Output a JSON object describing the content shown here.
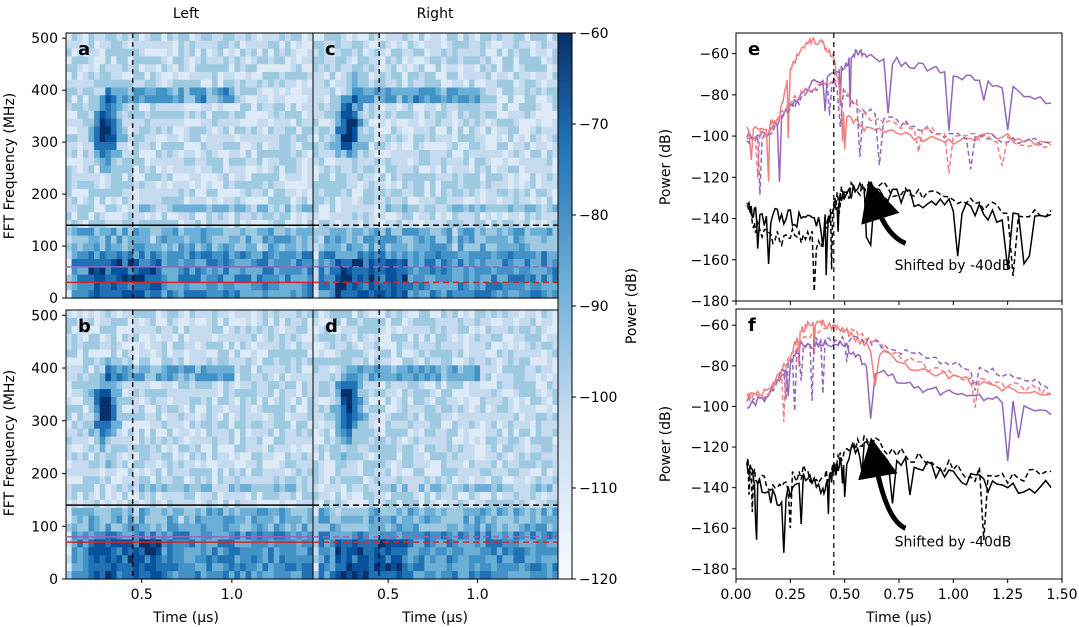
{
  "chart_data": {
    "type": "heatmap",
    "spectrograms": {
      "column_titles": [
        "Left",
        "Right"
      ],
      "colorbar": {
        "label": "Power (dB)",
        "ticks": [
          -60,
          -70,
          -80,
          -90,
          -100,
          -110,
          -120
        ],
        "range": [
          -120,
          -60
        ]
      },
      "ylabel": "FFT Frequency (MHz)",
      "yticks": [
        0,
        100,
        200,
        300,
        400,
        500
      ],
      "ylim": [
        0,
        510
      ],
      "xlabel": "Time (μs)",
      "xticks": [
        0.5,
        1.0
      ],
      "xlim": [
        0.08,
        1.45
      ],
      "xtick_labels": [
        "0.5",
        "1.0"
      ],
      "vline_time": 0.45,
      "panels": [
        {
          "tag": "a",
          "side": "Left",
          "row": "top",
          "hline_black": 140,
          "band_purple": 60,
          "band_red": 30,
          "line_style": "solid",
          "blob_time": 0.3,
          "blob_freq": 320
        },
        {
          "tag": "c",
          "side": "Right",
          "row": "top",
          "hline_black": 140,
          "band_purple": 60,
          "band_red": 30,
          "line_style": "dashed",
          "blob_time": 0.28,
          "blob_freq": 330
        },
        {
          "tag": "b",
          "side": "Left",
          "row": "bottom",
          "hline_black": 140,
          "band_purple": 80,
          "band_red": 70,
          "line_style": "solid",
          "blob_time": 0.3,
          "blob_freq": 320
        },
        {
          "tag": "d",
          "side": "Right",
          "row": "bottom",
          "hline_black": 140,
          "band_purple": 80,
          "band_red": 70,
          "line_style": "dashed",
          "blob_time": 0.28,
          "blob_freq": 330
        }
      ]
    },
    "power_plots": [
      {
        "tag": "e",
        "type": "line",
        "ylabel": "Power (dB)",
        "ylim": [
          -180,
          -50
        ],
        "yticks": [
          -60,
          -80,
          -100,
          -120,
          -140,
          -160,
          -180
        ],
        "xlim": [
          0,
          1.5
        ],
        "vline_time": 0.45,
        "annotation": "Shifted by -40dB",
        "series": [
          {
            "name": "purple solid",
            "color": "#9467bd",
            "style": "solid",
            "x": [
              0.05,
              0.15,
              0.25,
              0.35,
              0.45,
              0.5,
              0.55,
              0.6,
              0.8,
              1.0,
              1.2,
              1.45
            ],
            "y": [
              -100,
              -99,
              -85,
              -74,
              -70,
              -66,
              -59,
              -61,
              -65,
              -70,
              -75,
              -84
            ]
          },
          {
            "name": "salmon solid",
            "color": "#f08080",
            "style": "solid",
            "x": [
              0.05,
              0.15,
              0.2,
              0.25,
              0.3,
              0.35,
              0.4,
              0.45,
              0.5,
              0.6,
              0.8,
              1.0,
              1.2,
              1.45
            ],
            "y": [
              -97,
              -95,
              -90,
              -68,
              -57,
              -53,
              -55,
              -62,
              -90,
              -97,
              -100,
              -102,
              -100,
              -103
            ]
          },
          {
            "name": "purple dashed",
            "color": "#9467bd",
            "style": "dashed",
            "x": [
              0.05,
              0.15,
              0.25,
              0.35,
              0.45,
              0.6,
              0.8,
              1.0,
              1.2,
              1.45
            ],
            "y": [
              -102,
              -100,
              -86,
              -78,
              -74,
              -88,
              -95,
              -100,
              -101,
              -104
            ]
          },
          {
            "name": "salmon dashed",
            "color": "#f08080",
            "style": "dashed",
            "x": [
              0.05,
              0.15,
              0.25,
              0.35,
              0.45,
              0.6,
              0.8,
              1.0,
              1.2,
              1.45
            ],
            "y": [
              -100,
              -98,
              -84,
              -76,
              -73,
              -90,
              -96,
              -99,
              -102,
              -104
            ]
          },
          {
            "name": "black solid",
            "color": "#000000",
            "style": "solid",
            "x": [
              0.05,
              0.1,
              0.2,
              0.3,
              0.4,
              0.45,
              0.5,
              0.6,
              0.8,
              1.0,
              1.2,
              1.45
            ],
            "y": [
              -132,
              -140,
              -138,
              -141,
              -143,
              -135,
              -128,
              -125,
              -130,
              -134,
              -138,
              -138
            ]
          },
          {
            "name": "black dashed",
            "color": "#000000",
            "style": "dashed",
            "x": [
              0.05,
              0.1,
              0.2,
              0.3,
              0.4,
              0.45,
              0.5,
              0.6,
              0.8,
              1.0,
              1.2,
              1.45
            ],
            "y": [
              -135,
              -145,
              -150,
              -148,
              -152,
              -132,
              -127,
              -124,
              -129,
              -131,
              -135,
              -136
            ]
          }
        ]
      },
      {
        "tag": "f",
        "type": "line",
        "ylabel": "Power (dB)",
        "xlabel": "Time (μs)",
        "ylim": [
          -185,
          -52
        ],
        "yticks": [
          -60,
          -80,
          -100,
          -120,
          -140,
          -160,
          -180
        ],
        "xlim": [
          0,
          1.5
        ],
        "xticks": [
          0.0,
          0.25,
          0.5,
          0.75,
          1.0,
          1.25,
          1.5
        ],
        "xtick_labels": [
          "0.00",
          "0.25",
          "0.50",
          "0.75",
          "1.00",
          "1.25",
          "1.50"
        ],
        "vline_time": 0.45,
        "annotation": "Shifted by -40dB",
        "series": [
          {
            "name": "purple solid",
            "color": "#9467bd",
            "style": "solid",
            "x": [
              0.05,
              0.15,
              0.25,
              0.3,
              0.4,
              0.5,
              0.6,
              0.8,
              1.0,
              1.2,
              1.45
            ],
            "y": [
              -100,
              -95,
              -78,
              -70,
              -69,
              -70,
              -80,
              -90,
              -94,
              -97,
              -104
            ]
          },
          {
            "name": "salmon solid",
            "color": "#f08080",
            "style": "solid",
            "x": [
              0.05,
              0.15,
              0.25,
              0.3,
              0.35,
              0.4,
              0.5,
              0.6,
              0.8,
              1.0,
              1.2,
              1.45
            ],
            "y": [
              -95,
              -93,
              -75,
              -62,
              -59,
              -59,
              -62,
              -70,
              -80,
              -86,
              -90,
              -94
            ]
          },
          {
            "name": "purple dashed",
            "color": "#9467bd",
            "style": "dashed",
            "x": [
              0.05,
              0.15,
              0.25,
              0.35,
              0.45,
              0.55,
              0.7,
              0.9,
              1.1,
              1.3,
              1.45
            ],
            "y": [
              -98,
              -95,
              -76,
              -68,
              -68,
              -66,
              -71,
              -76,
              -81,
              -86,
              -91
            ]
          },
          {
            "name": "salmon dashed",
            "color": "#f08080",
            "style": "dashed",
            "x": [
              0.05,
              0.15,
              0.25,
              0.35,
              0.45,
              0.55,
              0.7,
              0.9,
              1.1,
              1.3,
              1.45
            ],
            "y": [
              -96,
              -94,
              -74,
              -63,
              -61,
              -63,
              -72,
              -82,
              -87,
              -90,
              -93
            ]
          },
          {
            "name": "black solid",
            "color": "#000000",
            "style": "solid",
            "x": [
              0.05,
              0.1,
              0.2,
              0.3,
              0.4,
              0.45,
              0.5,
              0.6,
              0.8,
              1.0,
              1.2,
              1.45
            ],
            "y": [
              -130,
              -138,
              -148,
              -134,
              -140,
              -132,
              -125,
              -120,
              -128,
              -134,
              -140,
              -140
            ]
          },
          {
            "name": "black dashed",
            "color": "#000000",
            "style": "dashed",
            "x": [
              0.05,
              0.1,
              0.2,
              0.3,
              0.4,
              0.45,
              0.5,
              0.6,
              0.8,
              1.0,
              1.2,
              1.45
            ],
            "y": [
              -128,
              -135,
              -142,
              -132,
              -136,
              -130,
              -122,
              -118,
              -124,
              -130,
              -136,
              -132
            ]
          }
        ]
      }
    ]
  }
}
